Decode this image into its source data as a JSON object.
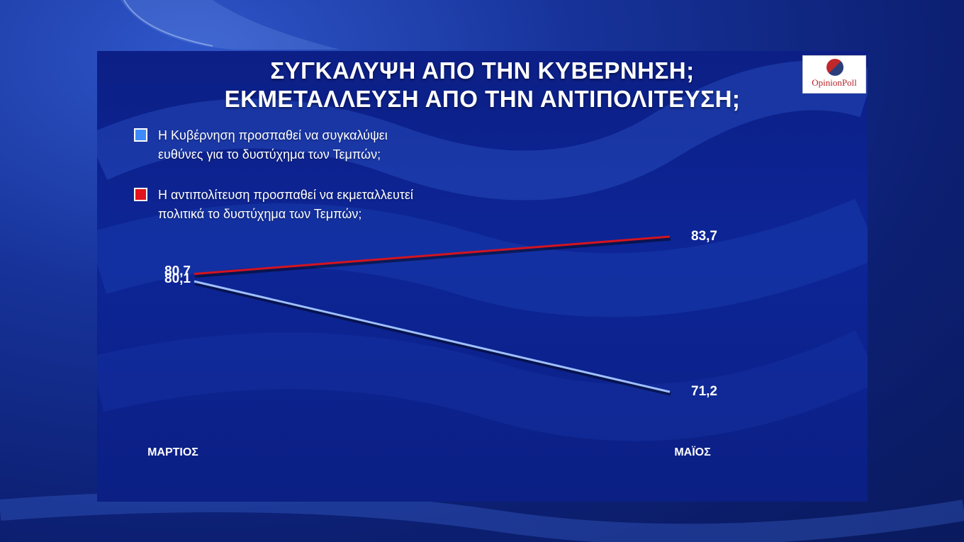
{
  "title": {
    "line1": "ΣΥΓΚΑΛΥΨΗ ΑΠΟ ΤΗΝ ΚΥΒΕΡΝΗΣΗ;",
    "line2": "ΕΚΜΕΤΑΛΛΕΥΣΗ ΑΠΟ ΤΗΝ ΑΝΤΙΠΟΛΙΤΕΥΣΗ;"
  },
  "logo": {
    "text": "OpinionPoll"
  },
  "colors": {
    "series_blue": "#9fc0ff",
    "series_blue_swatch": "#3d8bff",
    "series_red": "#d3141f",
    "series_red_swatch": "#e3141c"
  },
  "chart_data": {
    "type": "line",
    "categories": [
      "ΜΑΡΤΙΟΣ",
      "ΜΑΪΟΣ"
    ],
    "series": [
      {
        "name": "Η Κυβέρνηση προσπαθεί να συγκαλύψει ευθύνες για το δυστύχημα των Τεμπών;",
        "name_line1": "Η Κυβέρνηση προσπαθεί να συγκαλύψει",
        "name_line2": "ευθύνες για το δυστύχημα των Τεμπών;",
        "values": [
          80.1,
          71.2
        ],
        "labels": [
          "80,1",
          "71,2"
        ]
      },
      {
        "name": "Η αντιπολίτευση προσπαθεί να εκμεταλλευτεί πολιτικά το δυστύχημα των Τεμπών;",
        "name_line1": "Η αντιπολίτευση προσπαθεί να εκμεταλλευτεί",
        "name_line2": "πολιτικά το δυστύχημα των Τεμπών;",
        "values": [
          80.7,
          83.7
        ],
        "labels": [
          "80,7",
          "83,7"
        ]
      }
    ],
    "grid": false,
    "legend_position": "top-left"
  }
}
